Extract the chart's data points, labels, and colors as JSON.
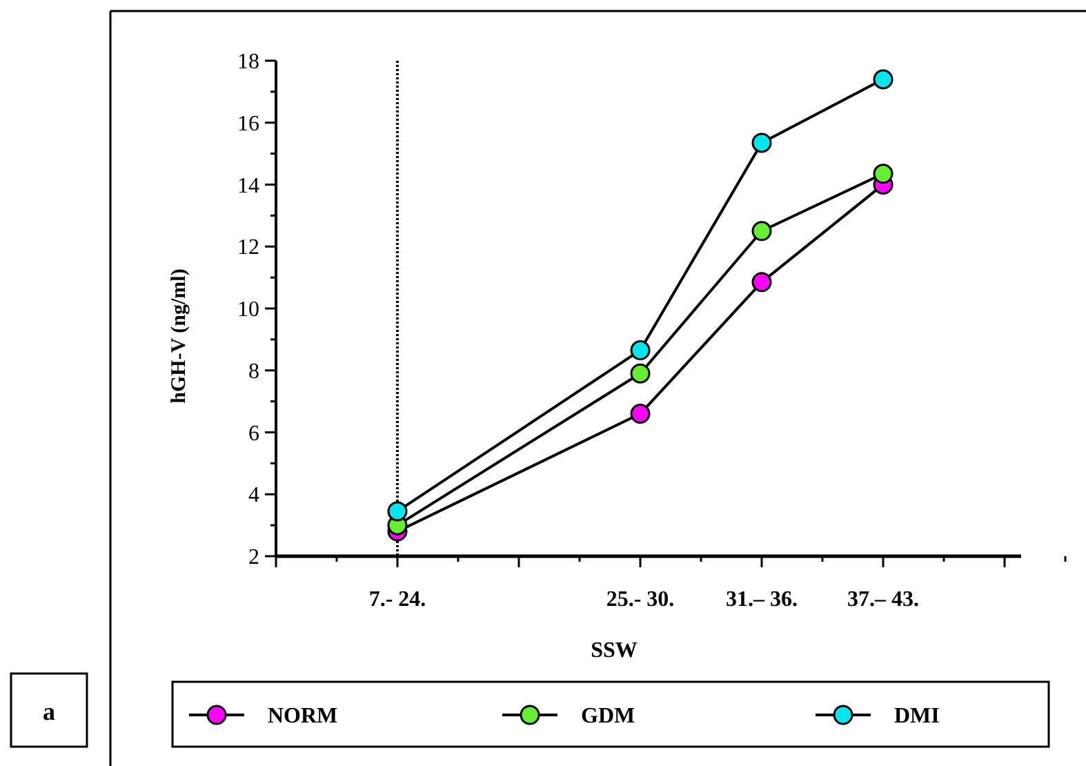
{
  "chart_data": {
    "type": "line",
    "xlabel": "SSW",
    "ylabel": "hGH-V (ng/ml)",
    "categories": [
      null,
      "7.- 24.",
      null,
      "25.- 30.",
      "31.– 36.",
      "37.– 43.",
      null
    ],
    "series": [
      {
        "name": "NORM",
        "color": "#ff00ff",
        "values": [
          null,
          2.8,
          null,
          6.6,
          10.85,
          14.0,
          null
        ]
      },
      {
        "name": "GDM",
        "color": "#66ee33",
        "values": [
          null,
          3.0,
          null,
          7.9,
          12.5,
          14.35,
          null
        ]
      },
      {
        "name": "DMI",
        "color": "#00e5ee",
        "values": [
          null,
          3.45,
          null,
          8.65,
          15.35,
          17.4,
          null
        ]
      }
    ],
    "ylim": [
      2,
      18
    ],
    "yticks": [
      2,
      {
        "value": 3,
        "label": null
      },
      4,
      {
        "value": 5,
        "label": null
      },
      6,
      {
        "value": 7,
        "label": null
      },
      8,
      {
        "value": 9,
        "label": null
      },
      10,
      {
        "value": 11,
        "label": null
      },
      12,
      {
        "value": 13,
        "label": null
      },
      14,
      {
        "value": 15,
        "label": null
      },
      16,
      {
        "value": 17,
        "label": null
      },
      18
    ],
    "ref_lines": [
      {
        "axis": "x",
        "value": "7.- 24.",
        "line_style": "dotted"
      }
    ],
    "annotations": [
      "a"
    ],
    "marker": "circle",
    "legend": "bottom",
    "grid": false
  }
}
